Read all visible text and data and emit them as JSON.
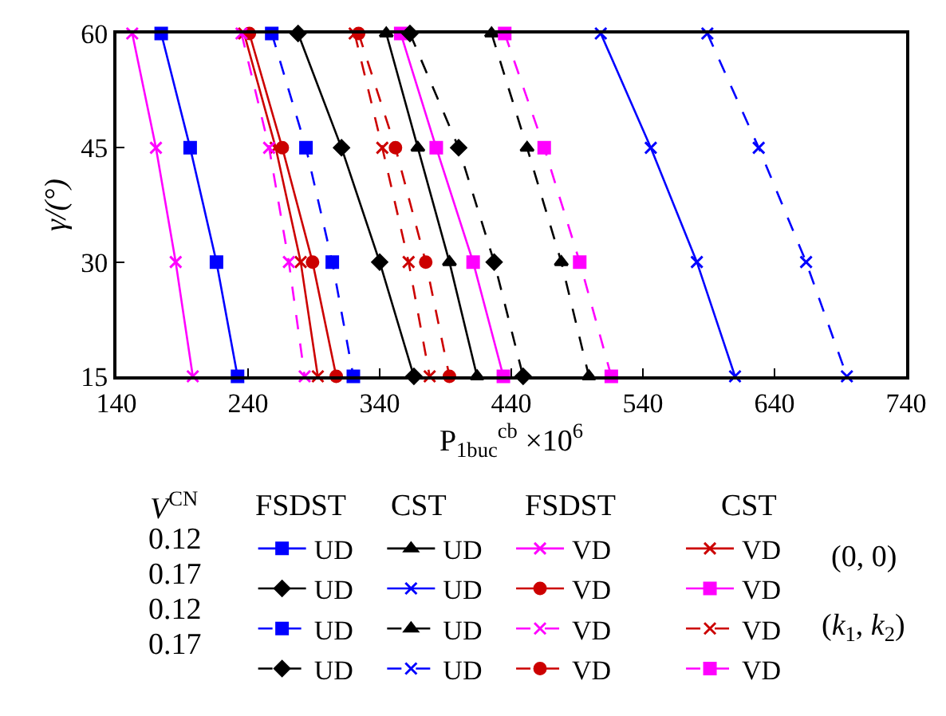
{
  "chart_data": {
    "type": "line",
    "xlabel": "P$_{1buc}$$^{cb}$ ×10$^{6}$",
    "ylabel": "γ/(°)",
    "xlim": [
      140,
      740
    ],
    "xticks": [
      140,
      240,
      340,
      440,
      540,
      640,
      740
    ],
    "ylim": [
      15,
      60
    ],
    "yticks": [
      15,
      30,
      45,
      60
    ],
    "grid": false,
    "legend": "bottom",
    "annotations": [
      "V$^{CN}$",
      "FSDST",
      "CST",
      "FSDST",
      "CST",
      "0.12",
      "0.17",
      "0.12",
      "0.17",
      "(0, 0)",
      "(k$_{1}$, k$_{2}$)"
    ],
    "series": [
      {
        "name": "UD",
        "color": "#0000ff",
        "marker": "square",
        "line_style": "solid",
        "x": [
          174,
          196,
          216,
          232
        ],
        "values": [
          60,
          45,
          30,
          15
        ]
      },
      {
        "name": "UD",
        "color": "#000000",
        "marker": "triangle",
        "line_style": "solid",
        "x": [
          345,
          369,
          393,
          414
        ],
        "values": [
          60,
          45,
          30,
          15
        ]
      },
      {
        "name": "VD",
        "color": "#ff00ff",
        "marker": "cross",
        "line_style": "solid",
        "x": [
          152,
          170,
          185,
          198
        ],
        "values": [
          60,
          45,
          30,
          15
        ]
      },
      {
        "name": "VD",
        "color": "#cc0000",
        "marker": "cross",
        "line_style": "solid",
        "x": [
          237,
          261,
          280,
          293
        ],
        "values": [
          60,
          45,
          30,
          15
        ]
      },
      {
        "name": "UD",
        "color": "#000000",
        "marker": "diamond",
        "line_style": "solid",
        "x": [
          278,
          311,
          340,
          366
        ],
        "values": [
          60,
          45,
          30,
          15
        ]
      },
      {
        "name": "UD",
        "color": "#0000ff",
        "marker": "cross",
        "line_style": "solid",
        "x": [
          508,
          546,
          581,
          610
        ],
        "values": [
          60,
          45,
          30,
          15
        ]
      },
      {
        "name": "VD",
        "color": "#cc0000",
        "marker": "circle",
        "line_style": "solid",
        "x": [
          241,
          266,
          289,
          307
        ],
        "values": [
          60,
          45,
          30,
          15
        ]
      },
      {
        "name": "VD",
        "color": "#ff00ff",
        "marker": "square",
        "line_style": "solid",
        "x": [
          356,
          383,
          411,
          434
        ],
        "values": [
          60,
          45,
          30,
          15
        ]
      },
      {
        "name": "UD",
        "color": "#0000ff",
        "marker": "square",
        "line_style": "dashed",
        "x": [
          258,
          284,
          304,
          320
        ],
        "values": [
          60,
          45,
          30,
          15
        ]
      },
      {
        "name": "UD",
        "color": "#000000",
        "marker": "triangle",
        "line_style": "dashed",
        "x": [
          425,
          452,
          478,
          499
        ],
        "values": [
          60,
          45,
          30,
          15
        ]
      },
      {
        "name": "VD",
        "color": "#ff00ff",
        "marker": "cross",
        "line_style": "dashed",
        "x": [
          235,
          256,
          271,
          283
        ],
        "values": [
          60,
          45,
          30,
          15
        ]
      },
      {
        "name": "VD",
        "color": "#cc0000",
        "marker": "cross",
        "line_style": "dashed",
        "x": [
          321,
          342,
          362,
          378
        ],
        "values": [
          60,
          45,
          30,
          15
        ]
      },
      {
        "name": "UD",
        "color": "#000000",
        "marker": "diamond",
        "line_style": "dashed",
        "x": [
          363,
          400,
          427,
          449
        ],
        "values": [
          60,
          45,
          30,
          15
        ]
      },
      {
        "name": "UD",
        "color": "#0000ff",
        "marker": "cross",
        "line_style": "dashed",
        "x": [
          589,
          628,
          664,
          695
        ],
        "values": [
          60,
          45,
          30,
          15
        ]
      },
      {
        "name": "VD",
        "color": "#cc0000",
        "marker": "circle",
        "line_style": "dashed",
        "x": [
          324,
          352,
          375,
          393
        ],
        "values": [
          60,
          45,
          30,
          15
        ]
      },
      {
        "name": "VD",
        "color": "#ff00ff",
        "marker": "square",
        "line_style": "dashed",
        "x": [
          435,
          465,
          492,
          516
        ],
        "values": [
          60,
          45,
          30,
          15
        ]
      }
    ]
  }
}
